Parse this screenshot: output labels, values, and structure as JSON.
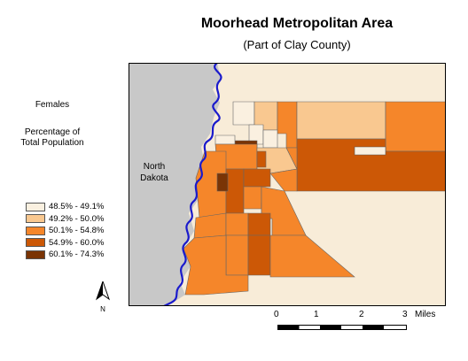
{
  "title": "Moorhead Metropolitan Area",
  "subtitle": "(Part of Clay County)",
  "legend": {
    "heading": "Females",
    "sub1": "Percentage of",
    "sub2": "Total Population",
    "items": [
      {
        "label": "48.5% - 49.1%",
        "color": "#faf0e0"
      },
      {
        "label": "49.2% - 50.0%",
        "color": "#f9c890"
      },
      {
        "label": "50.1% - 54.8%",
        "color": "#f5862a"
      },
      {
        "label": "54.9% - 60.0%",
        "color": "#cc5806"
      },
      {
        "label": "60.1% - 74.3%",
        "color": "#7a3405"
      }
    ]
  },
  "map": {
    "region_label_line1": "North",
    "region_label_line2": "Dakota",
    "colors": {
      "north_dakota": "#c8c8c8",
      "background_county": "#f8ecd8",
      "river": "#1a1acc"
    }
  },
  "north_arrow": {
    "label": "N"
  },
  "scale": {
    "ticks": [
      "0",
      "1",
      "2",
      "3"
    ],
    "unit": "Miles"
  }
}
